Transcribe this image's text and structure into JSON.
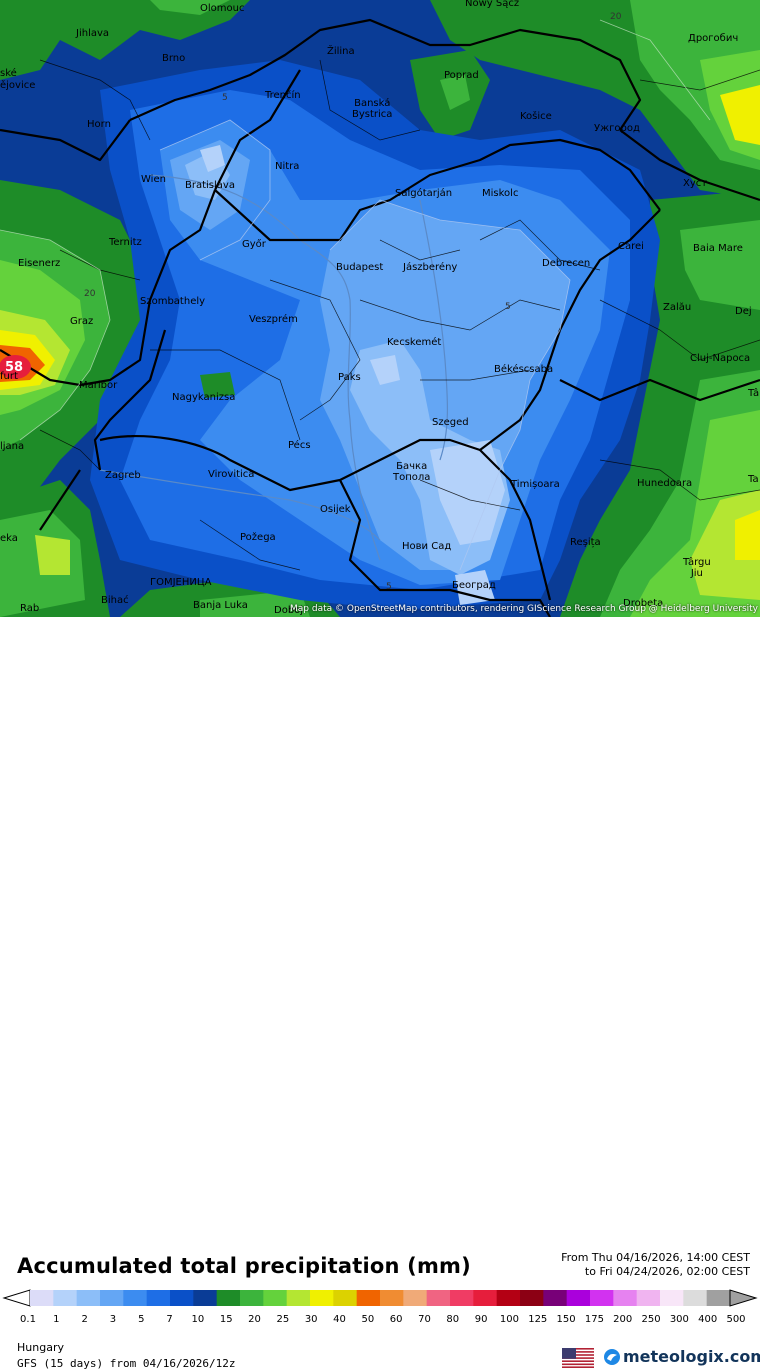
{
  "map": {
    "attribution": "Map data © OpenStreetMap contributors, rendering GIScience Research Group @ Heidelberg University",
    "max_marker": "58",
    "isoline_labels": [
      "5",
      "5",
      "5",
      "20",
      "20"
    ],
    "cities": [
      {
        "name": "Olomouc"
      },
      {
        "name": "Nowy Sącz"
      },
      {
        "name": "Jihlava"
      },
      {
        "name": "Žilina"
      },
      {
        "name": "Дрогобич"
      },
      {
        "name": "Brno"
      },
      {
        "name": "Poprad"
      },
      {
        "name": "ské"
      },
      {
        "name": "ějovice"
      },
      {
        "name": "Trenčín"
      },
      {
        "name": "Banská\nBystrica"
      },
      {
        "name": "Košice"
      },
      {
        "name": "Horn"
      },
      {
        "name": "Ужгород"
      },
      {
        "name": "Nitra"
      },
      {
        "name": "Wien"
      },
      {
        "name": "Bratislava"
      },
      {
        "name": "Salgótarján"
      },
      {
        "name": "Miskolc"
      },
      {
        "name": "Хуст"
      },
      {
        "name": "Ternitz"
      },
      {
        "name": "Győr"
      },
      {
        "name": "Carei"
      },
      {
        "name": "Baia Mare"
      },
      {
        "name": "Eisenerz"
      },
      {
        "name": "Budapest"
      },
      {
        "name": "Jászberény"
      },
      {
        "name": "Debrecen"
      },
      {
        "name": "Szombathely"
      },
      {
        "name": "Zalău"
      },
      {
        "name": "Graz"
      },
      {
        "name": "Veszprém"
      },
      {
        "name": "Dej"
      },
      {
        "name": "Kecskemét"
      },
      {
        "name": "Cluj-Napoca"
      },
      {
        "name": "furt"
      },
      {
        "name": "Maribor"
      },
      {
        "name": "Paks"
      },
      {
        "name": "Békéscsaba"
      },
      {
        "name": "Nagykanizsa"
      },
      {
        "name": "Szeged"
      },
      {
        "name": "ljana"
      },
      {
        "name": "Pécs"
      },
      {
        "name": "Бачка\nТопола"
      },
      {
        "name": "Zagreb"
      },
      {
        "name": "Virovitica"
      },
      {
        "name": "Timișoara"
      },
      {
        "name": "Hunedoara"
      },
      {
        "name": "Osijek"
      },
      {
        "name": "Požega"
      },
      {
        "name": "Нови Сад"
      },
      {
        "name": "Reșița"
      },
      {
        "name": "eka"
      },
      {
        "name": "Târgu\nJiu"
      },
      {
        "name": "ГОМЈЕНИЦА"
      },
      {
        "name": "Београд"
      },
      {
        "name": "Bihać"
      },
      {
        "name": "Banja Luka"
      },
      {
        "name": "Doboj"
      },
      {
        "name": "Drobeta"
      },
      {
        "name": "Rab"
      },
      {
        "name": "Tâ"
      },
      {
        "name": "Ta"
      }
    ]
  },
  "legend": {
    "title": "Accumulated total precipitation (mm)",
    "period_from": "From Thu 04/16/2026, 14:00 CEST",
    "period_to": "to Fri 04/24/2026, 02:00 CEST",
    "ticks": [
      "0.1",
      "1",
      "2",
      "3",
      "5",
      "7",
      "10",
      "15",
      "20",
      "25",
      "30",
      "40",
      "50",
      "60",
      "70",
      "80",
      "90",
      "100",
      "125",
      "150",
      "175",
      "200",
      "250",
      "300",
      "400",
      "500"
    ],
    "colors": [
      "#dcdcf8",
      "#b4d2fa",
      "#8cbef8",
      "#64a6f4",
      "#3c8cf0",
      "#1e6ee6",
      "#0a50c8",
      "#0a3c96",
      "#1e8c28",
      "#3cb43c",
      "#64d23c",
      "#b4e632",
      "#f0f000",
      "#dcd200",
      "#f06400",
      "#f08c32",
      "#f0aa78",
      "#f06482",
      "#f03c64",
      "#e61e3c",
      "#b40014",
      "#8c0014",
      "#780078",
      "#aa00dc",
      "#d232f0",
      "#e682f0",
      "#f0b4f0",
      "#f8e6f8",
      "#dcdcdc",
      "#a0a0a0"
    ],
    "region": "Hungary",
    "model": "GFS (15 days) from  04/16/2026/12z",
    "brand": "meteologix.com"
  }
}
